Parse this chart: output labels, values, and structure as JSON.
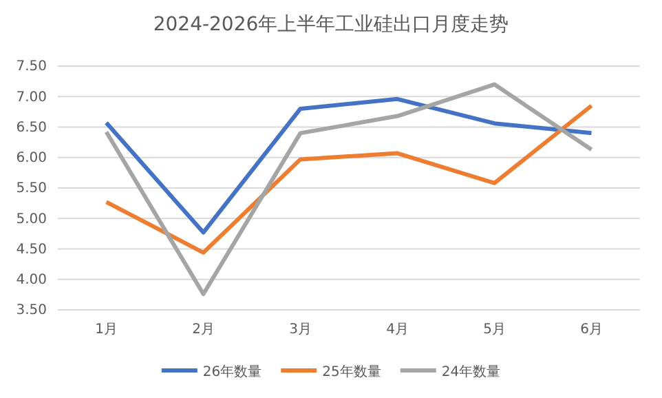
{
  "chart_data": {
    "type": "line",
    "title": "2024-2026年上半年工业硅出口月度走势",
    "categories": [
      "1月",
      "2月",
      "3月",
      "4月",
      "5月",
      "6月"
    ],
    "series": [
      {
        "name": "26年数量",
        "color": "#4472c4",
        "values": [
          6.57,
          4.77,
          6.8,
          6.96,
          6.56,
          6.4
        ]
      },
      {
        "name": "25年数量",
        "color": "#ed7d31",
        "values": [
          5.27,
          4.44,
          5.97,
          6.07,
          5.58,
          6.85
        ]
      },
      {
        "name": "24年数量",
        "color": "#a5a5a5",
        "values": [
          6.42,
          3.76,
          6.4,
          6.68,
          7.2,
          6.13
        ]
      }
    ],
    "ylim": [
      3.5,
      7.5
    ],
    "yticks": [
      {
        "value": 3.5,
        "label": "3.50"
      },
      {
        "value": 4,
        "label": "4.00"
      },
      {
        "value": 4.5,
        "label": "4.50"
      },
      {
        "value": 5,
        "label": "5.00"
      },
      {
        "value": 5.5,
        "label": "5.50"
      },
      {
        "value": 6,
        "label": "6.00"
      },
      {
        "value": 6.5,
        "label": "6.50"
      },
      {
        "value": 7,
        "label": "7.00"
      },
      {
        "value": 7.5,
        "label": "7.50"
      }
    ],
    "grid": "y",
    "legend": "bottom",
    "marker": "none",
    "line_style": "solid"
  }
}
